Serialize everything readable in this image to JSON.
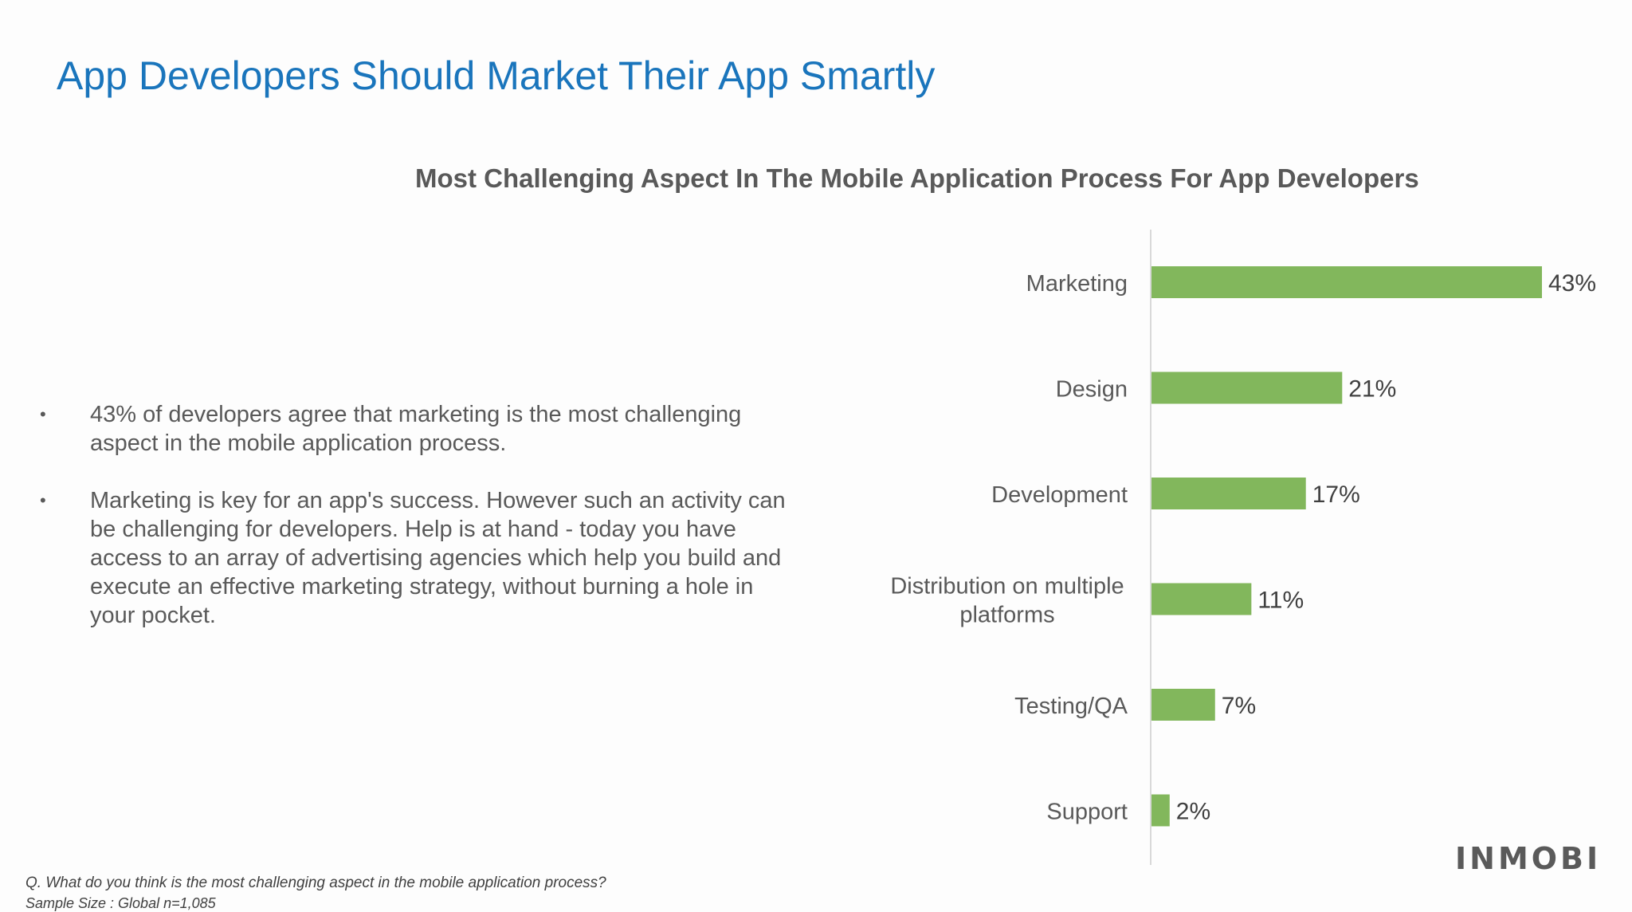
{
  "page": {
    "title": "App Developers Should Market Their App Smartly",
    "bullets": [
      "43% of developers agree that marketing is the most challenging aspect in the mobile application process.",
      "Marketing is key for an app's success. However such an activity can be challenging for developers. Help is at hand - today you have access to an array of advertising agencies which help you build and execute an effective marketing strategy, without burning a hole in your pocket."
    ],
    "footnote_question": "Q. What do you think is the most challenging aspect in the mobile application process?",
    "footnote_sample": "Sample Size :  Global n=1,085",
    "logo_text": "INMOBI"
  },
  "chart_data": {
    "type": "bar",
    "orientation": "horizontal",
    "title": "Most Challenging Aspect In The Mobile Application Process For App Developers",
    "categories": [
      "Marketing",
      "Design",
      "Development",
      "Distribution on multiple platforms",
      "Testing/QA",
      "Support"
    ],
    "values": [
      43,
      21,
      17,
      11,
      7,
      2
    ],
    "data_labels": [
      "43%",
      "21%",
      "17%",
      "11%",
      "7%",
      "2%"
    ],
    "bar_color": "#82b75c",
    "xlim": [
      0,
      43
    ],
    "grid": false
  }
}
